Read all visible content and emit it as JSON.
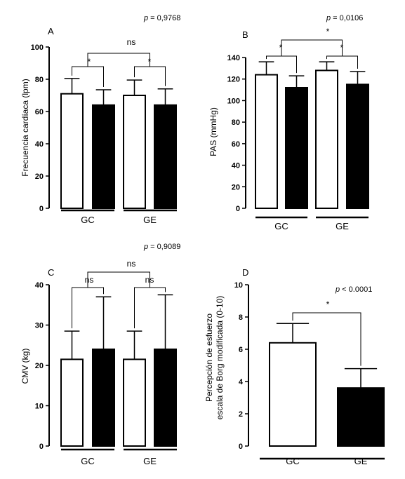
{
  "chart_data": [
    {
      "type": "bar",
      "panel": "A",
      "ylabel": "Frecuencia cardíaca (lpm)",
      "p_text": "= 0,9768",
      "groups": [
        "GC",
        "GE"
      ],
      "ylim": [
        0,
        100
      ],
      "yticks": [
        "0",
        "20",
        "40",
        "60",
        "80",
        "100"
      ],
      "bars": [
        {
          "fill": "white",
          "value": 71,
          "err": 9.5
        },
        {
          "fill": "black",
          "value": 64,
          "err": 9.5
        },
        {
          "fill": "white",
          "value": 70,
          "err": 9.5
        },
        {
          "fill": "black",
          "value": 64,
          "err": 10
        }
      ],
      "annotations": [
        {
          "label": "*",
          "from": 0,
          "to": 1
        },
        {
          "label": "*",
          "from": 2,
          "to": 3
        },
        {
          "label": "ns",
          "from": "0-1",
          "to": "2-3"
        }
      ]
    },
    {
      "type": "bar",
      "panel": "B",
      "ylabel": "PAS (mmHg)",
      "p_text": "= 0,0106",
      "groups": [
        "GC",
        "GE"
      ],
      "ylim": [
        0,
        140
      ],
      "yticks": [
        "0",
        "20",
        "40",
        "60",
        "80",
        "100",
        "120",
        "140"
      ],
      "bars": [
        {
          "fill": "white",
          "value": 124,
          "err": 12
        },
        {
          "fill": "black",
          "value": 112,
          "err": 11
        },
        {
          "fill": "white",
          "value": 128,
          "err": 8
        },
        {
          "fill": "black",
          "value": 115,
          "err": 12
        }
      ],
      "annotations": [
        {
          "label": "*",
          "from": 0,
          "to": 1
        },
        {
          "label": "*",
          "from": 2,
          "to": 3
        },
        {
          "label": "*",
          "from": "0-1",
          "to": "2-3"
        }
      ]
    },
    {
      "type": "bar",
      "panel": "C",
      "ylabel": "CMV (kg)",
      "p_text": "= 0,9089",
      "groups": [
        "GC",
        "GE"
      ],
      "ylim": [
        0,
        40
      ],
      "yticks": [
        "0",
        "10",
        "20",
        "30",
        "40"
      ],
      "bars": [
        {
          "fill": "white",
          "value": 21.5,
          "err": 7
        },
        {
          "fill": "black",
          "value": 24,
          "err": 13
        },
        {
          "fill": "white",
          "value": 21.5,
          "err": 7
        },
        {
          "fill": "black",
          "value": 24,
          "err": 13.5
        }
      ],
      "annotations": [
        {
          "label": "ns",
          "from": 0,
          "to": 1
        },
        {
          "label": "ns",
          "from": 2,
          "to": 3
        },
        {
          "label": "ns",
          "from": "0-1",
          "to": "2-3"
        }
      ]
    },
    {
      "type": "bar",
      "panel": "D",
      "ylabel": [
        "Percepción de esfuerzo",
        "escala de Borg modificada (0-10)"
      ],
      "p_text": "< 0.0001",
      "groups": [
        "GC",
        "GE"
      ],
      "ylim": [
        0,
        10
      ],
      "yticks": [
        "0",
        "2",
        "4",
        "6",
        "8",
        "10"
      ],
      "bars": [
        {
          "fill": "white",
          "value": 6.4,
          "err": 1.2
        },
        {
          "fill": "black",
          "value": 3.6,
          "err": 1.2
        }
      ],
      "annotations": [
        {
          "label": "*",
          "from": 0,
          "to": 1
        }
      ]
    }
  ]
}
